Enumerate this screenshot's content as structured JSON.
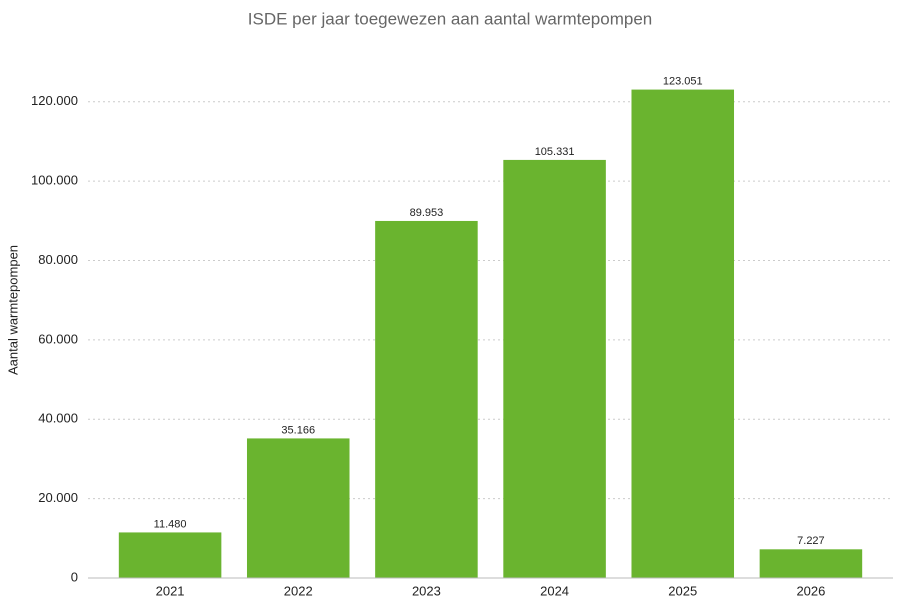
{
  "chart_data": {
    "type": "bar",
    "title": "ISDE per jaar toegewezen aan aantal warmtepompen",
    "y_label": "Aantal warmtepompen",
    "categories": [
      "2021",
      "2022",
      "2023",
      "2024",
      "2025",
      "2026"
    ],
    "values": [
      11480,
      35166,
      89953,
      105331,
      123051,
      7227
    ],
    "value_labels": [
      "11.480",
      "35.166",
      "89.953",
      "105.331",
      "123.051",
      "7.227"
    ],
    "color": "#6ab42f",
    "ylim": [
      0,
      130000
    ],
    "yticks": [
      0,
      {
        "value": 20000,
        "label": "20.000"
      },
      {
        "value": 40000,
        "label": "40.000"
      },
      {
        "value": 60000,
        "label": "60.000"
      },
      {
        "value": 80000,
        "label": "80.000"
      },
      {
        "value": 100000,
        "label": "100.000"
      },
      {
        "value": 120000,
        "label": "120.000"
      }
    ],
    "grid": true
  }
}
